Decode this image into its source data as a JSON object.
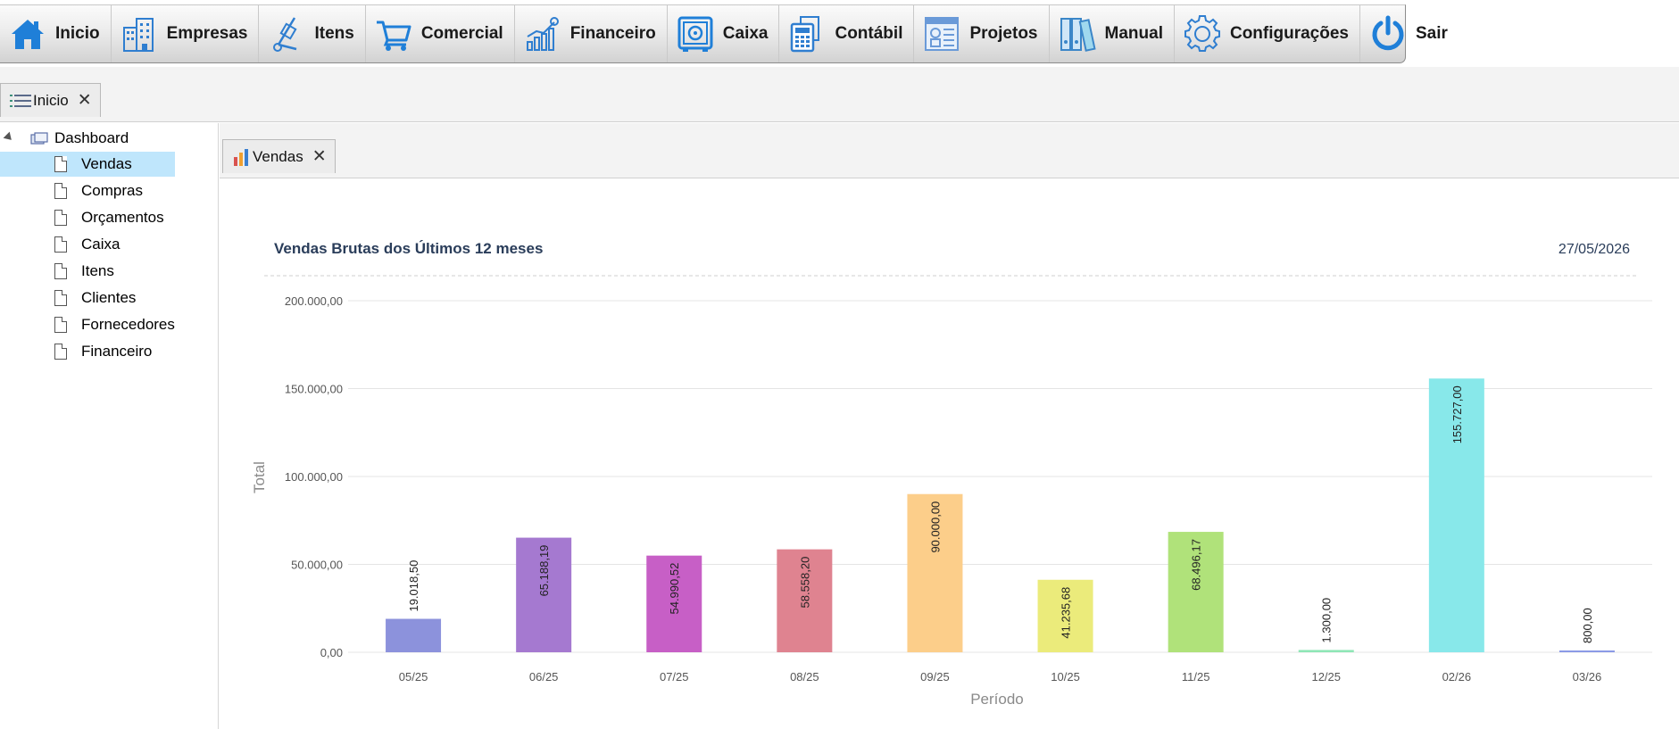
{
  "toolbar": {
    "items": [
      {
        "label": "Inicio",
        "icon": "home-icon"
      },
      {
        "label": "Empresas",
        "icon": "buildings-icon"
      },
      {
        "label": "Itens",
        "icon": "hand-truck-icon"
      },
      {
        "label": "Comercial",
        "icon": "shopping-cart-icon"
      },
      {
        "label": "Financeiro",
        "icon": "growth-chart-icon"
      },
      {
        "label": "Caixa",
        "icon": "safe-icon"
      },
      {
        "label": "Contábil",
        "icon": "calculator-icon"
      },
      {
        "label": "Projetos",
        "icon": "blueprint-icon"
      },
      {
        "label": "Manual",
        "icon": "binders-icon"
      },
      {
        "label": "Configurações",
        "icon": "gear-icon"
      },
      {
        "label": "Sair",
        "icon": "power-icon"
      }
    ]
  },
  "main_tab": {
    "label": "Inicio",
    "icon": "list-icon"
  },
  "tree": {
    "root_label": "Dashboard",
    "items": [
      "Vendas",
      "Compras",
      "Orçamentos",
      "Caixa",
      "Itens",
      "Clientes",
      "Fornecedores",
      "Financeiro"
    ],
    "selected": "Vendas"
  },
  "inner_tab": {
    "label": "Vendas",
    "icon": "bar-chart-icon"
  },
  "chart_data": {
    "type": "bar",
    "title": "Vendas Brutas dos Últimos 12 meses",
    "date": "27/05/2026",
    "xlabel": "Período",
    "ylabel": "Total",
    "ylim": [
      0,
      200000
    ],
    "yticks": [
      "0,00",
      "50.000,00",
      "100.000,00",
      "150.000,00",
      "200.000,00"
    ],
    "ytick_values": [
      0,
      50000,
      100000,
      150000,
      200000
    ],
    "grid": true,
    "categories": [
      "05/25",
      "06/25",
      "07/25",
      "08/25",
      "09/25",
      "10/25",
      "11/25",
      "12/25",
      "02/26",
      "03/26"
    ],
    "values": [
      19018.5,
      65188.19,
      54990.52,
      58558.2,
      90000.0,
      41235.68,
      68496.17,
      1300.0,
      155727.0,
      800.0
    ],
    "data_labels": [
      "19.018,50",
      "65.188,19",
      "54.990,52",
      "58.558,20",
      "90.000,00",
      "41.235,68",
      "68.496,17",
      "1.300,00",
      "155.727,00",
      "800,00"
    ],
    "colors": [
      "#8c92dc",
      "#a579d0",
      "#c75fc6",
      "#df8390",
      "#fcce8a",
      "#ebeb7b",
      "#b0e27a",
      "#8fe6b6",
      "#88e8ea",
      "#8b9ae6"
    ]
  }
}
